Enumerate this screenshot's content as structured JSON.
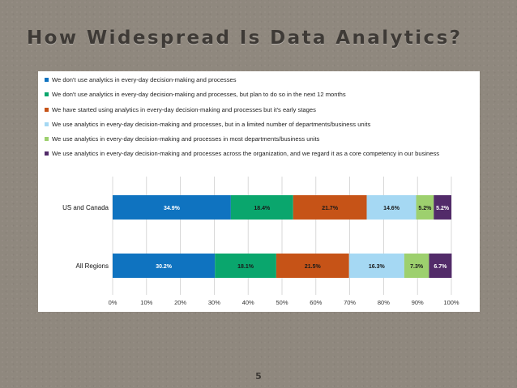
{
  "slide": {
    "title": "How Widespread Is Data Analytics?",
    "page_number": "5"
  },
  "chart_data": {
    "type": "bar",
    "orientation": "horizontal",
    "stacked": true,
    "title": "",
    "xlabel": "",
    "ylabel": "",
    "xlim": [
      0,
      100
    ],
    "x_ticks": [
      "0%",
      "10%",
      "20%",
      "30%",
      "40%",
      "50%",
      "60%",
      "70%",
      "80%",
      "90%",
      "100%"
    ],
    "grid": "vertical",
    "legend_position": "top",
    "categories": [
      "US and Canada",
      "All Regions"
    ],
    "series": [
      {
        "name": "We don't use analytics in every-day decision-making and processes",
        "color": "#0f73c0",
        "values": [
          34.9,
          30.2
        ],
        "labels": [
          "34.9%",
          "30.2%"
        ]
      },
      {
        "name": "We don't use analytics in every-day decision-making and processes, but plan to do so in the next 12 months",
        "color": "#0aa66d",
        "values": [
          18.4,
          18.1
        ],
        "labels": [
          "18.4%",
          "18.1%"
        ]
      },
      {
        "name": "We have started using analytics in every-day decision-making and processes but it's early stages",
        "color": "#c65317",
        "values": [
          21.7,
          21.5
        ],
        "labels": [
          "21.7%",
          "21.5%"
        ]
      },
      {
        "name": "We use  analytics in every-day decision-making and processes, but in a limited number of departments/business units",
        "color": "#a5d8f3",
        "values": [
          14.6,
          16.3
        ],
        "labels": [
          "14.6%",
          "16.3%"
        ]
      },
      {
        "name": "We use  analytics in every-day decision-making and processes in most departments/business units",
        "color": "#9dd06e",
        "values": [
          5.2,
          7.3
        ],
        "labels": [
          "5.2%",
          "7.3%"
        ]
      },
      {
        "name": "We use  analytics in every-day decision-making and processes across the organization, and we regard it as a core competency in our business",
        "color": "#522b69",
        "values": [
          5.2,
          6.7
        ],
        "labels": [
          "5.2%",
          "6.7%"
        ]
      }
    ]
  }
}
